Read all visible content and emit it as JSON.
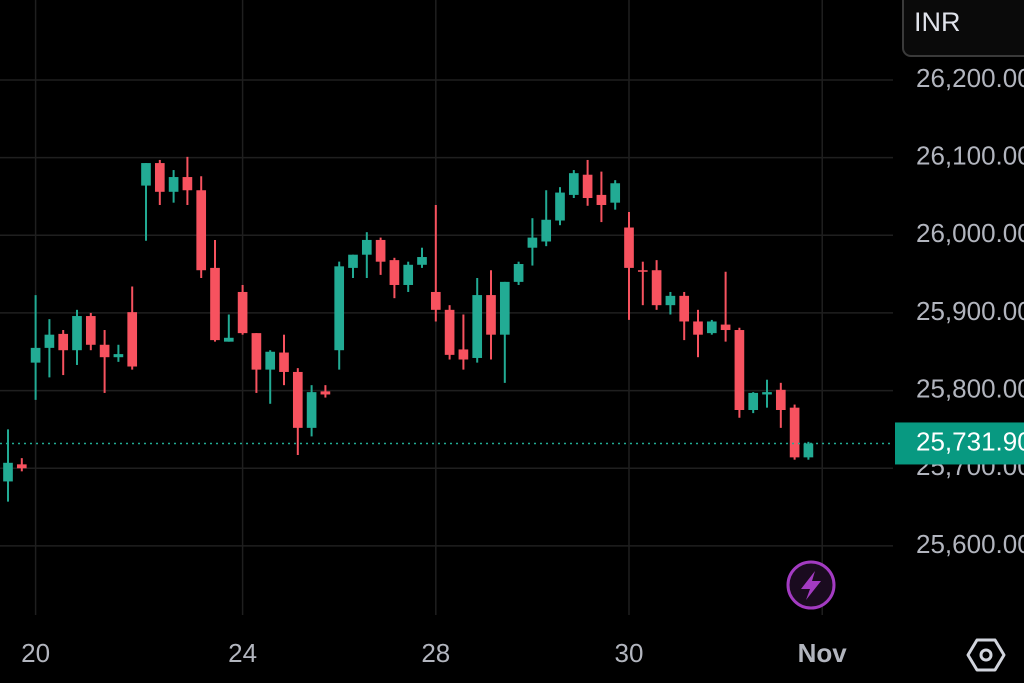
{
  "chart_data": {
    "type": "candlestick",
    "currency": "INR",
    "up_color": "#22ab94",
    "down_color": "#f7525f",
    "x": [
      0,
      1,
      2,
      3,
      4,
      5,
      6,
      7,
      8,
      9,
      10,
      11,
      12,
      13,
      14,
      15,
      16,
      17,
      18,
      19,
      20,
      21,
      22,
      23,
      24,
      25,
      26,
      27,
      28,
      29,
      30,
      31,
      32,
      33,
      34,
      35,
      36,
      37,
      38,
      39,
      40,
      41,
      42,
      43,
      44,
      45,
      46,
      47,
      48,
      49,
      50,
      51,
      52,
      53,
      54,
      55,
      56,
      57,
      58
    ],
    "open": [
      25683,
      25705,
      25836,
      25855,
      25873,
      25852,
      25896,
      25859,
      25843,
      25901,
      26064,
      26093,
      26056,
      26075,
      26058,
      25958,
      25863,
      25927,
      25874,
      25827,
      25849,
      25824,
      25752,
      25799,
      25852,
      25958,
      25975,
      25994,
      25968,
      25936,
      25962,
      25927,
      25904,
      25853,
      25842,
      25923,
      25872,
      25940,
      25984,
      25992,
      26019,
      26052,
      26078,
      26052,
      26042,
      26010,
      25955,
      25955,
      25910,
      25922,
      25889,
      25874,
      25885,
      25878,
      25775,
      25795,
      25801,
      25778,
      25714
    ],
    "high": [
      25750,
      25713,
      25923,
      25892,
      25878,
      25904,
      25900,
      25878,
      25859,
      25934,
      26093,
      26097,
      26084,
      26101,
      26076,
      25994,
      25898,
      25936,
      25874,
      25852,
      25872,
      25829,
      25807,
      25807,
      25966,
      25975,
      26004,
      25997,
      25971,
      25966,
      25984,
      26039,
      25910,
      25898,
      25945,
      25955,
      25940,
      25966,
      26022,
      26058,
      26062,
      26084,
      26097,
      26082,
      26071,
      26030,
      25966,
      25968,
      25927,
      25927,
      25904,
      25891,
      25953,
      25881,
      25798,
      25814,
      25810,
      25782,
      25734
    ],
    "low": [
      25657,
      25696,
      25788,
      25817,
      25820,
      25833,
      25852,
      25797,
      25837,
      25827,
      25993,
      26039,
      26042,
      26039,
      25945,
      25863,
      25863,
      25872,
      25797,
      25783,
      25807,
      25717,
      25741,
      25791,
      25827,
      25945,
      25945,
      25949,
      25919,
      25927,
      25958,
      25889,
      25840,
      25827,
      25836,
      25840,
      25810,
      25936,
      25961,
      25986,
      26013,
      26048,
      26038,
      26017,
      26033,
      25891,
      25910,
      25904,
      25898,
      25865,
      25843,
      25872,
      25863,
      25765,
      25771,
      25778,
      25752,
      25711,
      25711
    ],
    "close": [
      25707,
      25700,
      25855,
      25872,
      25852,
      25896,
      25859,
      25843,
      25847,
      25831,
      26093,
      26056,
      26075,
      26058,
      25955,
      25865,
      25868,
      25874,
      25827,
      25850,
      25824,
      25752,
      25798,
      25795,
      25960,
      25975,
      25994,
      25966,
      25936,
      25962,
      25972,
      25904,
      25846,
      25840,
      25923,
      25872,
      25940,
      25963,
      25997,
      26020,
      26055,
      26080,
      26048,
      26039,
      26067,
      25958,
      25953,
      25910,
      25922,
      25889,
      25872,
      25889,
      25878,
      25775,
      25797,
      25798,
      25775,
      25714,
      25731.9
    ],
    "xlim": [
      -0.58,
      64.13
    ],
    "xticks": [
      {
        "value": 2,
        "label": "20"
      },
      {
        "value": 17,
        "label": "24"
      },
      {
        "value": 31,
        "label": "28"
      },
      {
        "value": 45,
        "label": "30"
      },
      {
        "value": 59,
        "label": "Nov"
      }
    ],
    "ylim": [
      25511,
      26303
    ],
    "yticks": [
      {
        "value": 25600,
        "label": "25,600.00"
      },
      {
        "value": 25700,
        "label": "25,700.00"
      },
      {
        "value": 25800,
        "label": "25,800.00"
      },
      {
        "value": 25900,
        "label": "25,900.00"
      },
      {
        "value": 26000,
        "label": "26,000.00"
      },
      {
        "value": 26100,
        "label": "26,100.00"
      },
      {
        "value": 26200,
        "label": "26,200.00"
      }
    ],
    "last_price": {
      "value": 25731.9,
      "label": "25,731.90"
    },
    "grid": true
  }
}
